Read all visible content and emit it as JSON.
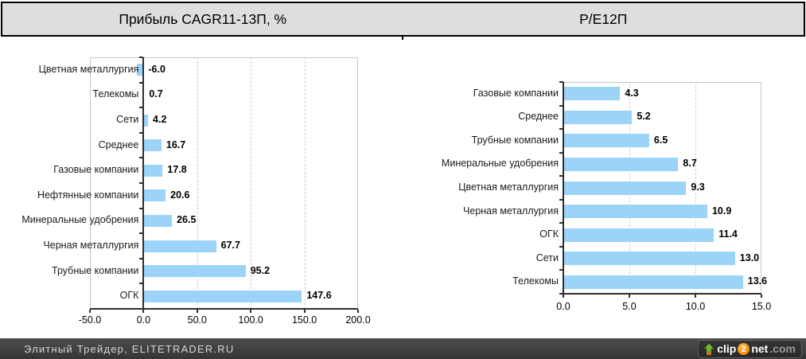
{
  "header": {
    "left_title": "Прибыль CAGR11-13П, %",
    "right_title": "P/E12П"
  },
  "colors": {
    "bar": "#9CD4F9",
    "header_bg": "#dedede",
    "footer_bg": "#3f3f3f",
    "logo_orange": "#f07d00",
    "logo_green": "#76b82a"
  },
  "chart_data": [
    {
      "type": "bar",
      "orientation": "horizontal",
      "title": "Прибыль CAGR11-13П, %",
      "categories": [
        "Цветная металлургия",
        "Телекомы",
        "Сети",
        "Среднее",
        "Газовые компании",
        "Нефтянные компании",
        "Минеральные удобрения",
        "Черная металлургия",
        "Трубные компании",
        "ОГК"
      ],
      "values": [
        -6.0,
        0.7,
        4.2,
        16.7,
        17.8,
        20.6,
        26.5,
        67.7,
        95.2,
        147.6
      ],
      "value_labels": [
        "-6.0",
        "0.7",
        "4.2",
        "16.7",
        "17.8",
        "20.6",
        "26.5",
        "67.7",
        "95.2",
        "147.6"
      ],
      "xlim": [
        -50,
        200
      ],
      "xticks": [
        -50,
        0,
        50,
        100,
        150,
        200
      ],
      "xtick_labels": [
        "-50.0",
        "0.0",
        "50.0",
        "100.0",
        "150.0",
        "200.0"
      ],
      "grid": "vertical-dashed",
      "legend": "none",
      "bar_color": "#9CD4F9"
    },
    {
      "type": "bar",
      "orientation": "horizontal",
      "title": "P/E12П",
      "categories": [
        "Газовые компании",
        "Среднее",
        "Трубные компании",
        "Минеральные удобрения",
        "Цветная металлургия",
        "Черная металлургия",
        "ОГК",
        "Сети",
        "Телекомы"
      ],
      "values": [
        4.3,
        5.2,
        6.5,
        8.7,
        9.3,
        10.9,
        11.4,
        13.0,
        13.6
      ],
      "value_labels": [
        "4.3",
        "5.2",
        "6.5",
        "8.7",
        "9.3",
        "10.9",
        "11.4",
        "13.0",
        "13.6"
      ],
      "xlim": [
        0,
        15
      ],
      "xticks": [
        0,
        5,
        10,
        15
      ],
      "xtick_labels": [
        "0.0",
        "5.0",
        "10.0",
        "15.0"
      ],
      "grid": "vertical-dashed",
      "legend": "none",
      "bar_color": "#9CD4F9"
    }
  ],
  "footer": {
    "credit": "Элитный Трейдер, ELITETRADER.RU",
    "logo": {
      "clip": "clip",
      "two": "2",
      "net": "net",
      "com": ".com"
    }
  }
}
